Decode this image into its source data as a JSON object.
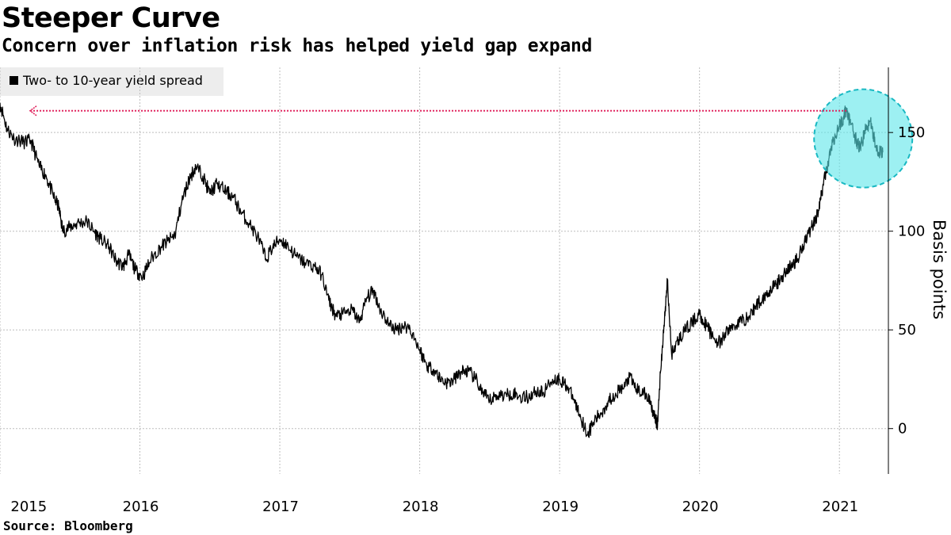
{
  "chart_data": {
    "type": "line",
    "title": "Steeper Curve",
    "subtitle": "Concern over inflation risk has helped yield gap expand",
    "ylabel": "Basis points",
    "xlabel": "",
    "source": "Source: Bloomberg",
    "legend": {
      "placement": "top-left",
      "entries": [
        "Two- to 10-year yield spread"
      ]
    },
    "grid": true,
    "xlim": [
      2015.0,
      2021.35
    ],
    "ylim": [
      -23,
      183
    ],
    "x_ticks": [
      {
        "label": "2015",
        "value": 2015.2
      },
      {
        "label": "2016",
        "value": 2016.0
      },
      {
        "label": "2017",
        "value": 2017.0
      },
      {
        "label": "2018",
        "value": 2018.0
      },
      {
        "label": "2019",
        "value": 2019.0
      },
      {
        "label": "2020",
        "value": 2020.0
      },
      {
        "label": "2021",
        "value": 2021.0
      }
    ],
    "x_gridlines": [
      2015.0,
      2016.0,
      2017.0,
      2018.0,
      2019.0,
      2020.0,
      2021.0
    ],
    "y_ticks": [
      0,
      50,
      100,
      150
    ],
    "series": [
      {
        "name": "Two- to 10-year yield spread",
        "color": "#000000",
        "points": [
          [
            2015.0,
            165
          ],
          [
            2015.05,
            152
          ],
          [
            2015.1,
            147
          ],
          [
            2015.17,
            145
          ],
          [
            2015.22,
            146
          ],
          [
            2015.28,
            133
          ],
          [
            2015.33,
            128
          ],
          [
            2015.38,
            118
          ],
          [
            2015.42,
            112
          ],
          [
            2015.45,
            100
          ],
          [
            2015.5,
            102
          ],
          [
            2015.55,
            104
          ],
          [
            2015.62,
            105
          ],
          [
            2015.67,
            100
          ],
          [
            2015.72,
            96
          ],
          [
            2015.78,
            92
          ],
          [
            2015.83,
            85
          ],
          [
            2015.88,
            82
          ],
          [
            2015.92,
            88
          ],
          [
            2015.97,
            80
          ],
          [
            2016.02,
            77
          ],
          [
            2016.08,
            86
          ],
          [
            2016.15,
            92
          ],
          [
            2016.2,
            95
          ],
          [
            2016.25,
            98
          ],
          [
            2016.3,
            115
          ],
          [
            2016.35,
            126
          ],
          [
            2016.4,
            133
          ],
          [
            2016.45,
            128
          ],
          [
            2016.5,
            119
          ],
          [
            2016.55,
            124
          ],
          [
            2016.62,
            120
          ],
          [
            2016.67,
            117
          ],
          [
            2016.72,
            110
          ],
          [
            2016.78,
            104
          ],
          [
            2016.85,
            96
          ],
          [
            2016.9,
            86
          ],
          [
            2016.95,
            92
          ],
          [
            2017.0,
            96
          ],
          [
            2017.05,
            93
          ],
          [
            2017.12,
            87
          ],
          [
            2017.18,
            84
          ],
          [
            2017.25,
            82
          ],
          [
            2017.3,
            78
          ],
          [
            2017.35,
            65
          ],
          [
            2017.4,
            57
          ],
          [
            2017.45,
            58
          ],
          [
            2017.52,
            60
          ],
          [
            2017.57,
            54
          ],
          [
            2017.62,
            66
          ],
          [
            2017.67,
            70
          ],
          [
            2017.72,
            60
          ],
          [
            2017.78,
            53
          ],
          [
            2017.83,
            50
          ],
          [
            2017.88,
            52
          ],
          [
            2017.93,
            51
          ],
          [
            2018.0,
            40
          ],
          [
            2018.05,
            32
          ],
          [
            2018.1,
            30
          ],
          [
            2018.15,
            25
          ],
          [
            2018.2,
            23
          ],
          [
            2018.25,
            25
          ],
          [
            2018.3,
            29
          ],
          [
            2018.35,
            29
          ],
          [
            2018.4,
            25
          ],
          [
            2018.45,
            18
          ],
          [
            2018.5,
            14
          ],
          [
            2018.55,
            17
          ],
          [
            2018.62,
            17
          ],
          [
            2018.67,
            18
          ],
          [
            2018.72,
            16
          ],
          [
            2018.78,
            16
          ],
          [
            2018.83,
            19
          ],
          [
            2018.88,
            18
          ],
          [
            2018.95,
            25
          ],
          [
            2019.0,
            25
          ],
          [
            2019.05,
            22
          ],
          [
            2019.1,
            15
          ],
          [
            2019.15,
            6
          ],
          [
            2019.2,
            -3
          ],
          [
            2019.25,
            4
          ],
          [
            2019.3,
            8
          ],
          [
            2019.35,
            14
          ],
          [
            2019.4,
            18
          ],
          [
            2019.45,
            20
          ],
          [
            2019.5,
            26
          ],
          [
            2019.55,
            20
          ],
          [
            2019.6,
            18
          ],
          [
            2019.65,
            14
          ],
          [
            2019.68,
            5
          ],
          [
            2019.7,
            2
          ],
          [
            2019.72,
            28
          ],
          [
            2019.75,
            55
          ],
          [
            2019.77,
            75
          ],
          [
            2019.8,
            38
          ],
          [
            2019.85,
            45
          ],
          [
            2019.9,
            50
          ],
          [
            2019.95,
            54
          ],
          [
            2020.0,
            58
          ],
          [
            2020.05,
            52
          ],
          [
            2020.1,
            46
          ],
          [
            2020.15,
            43
          ],
          [
            2020.2,
            50
          ],
          [
            2020.25,
            52
          ],
          [
            2020.3,
            55
          ],
          [
            2020.35,
            56
          ],
          [
            2020.4,
            62
          ],
          [
            2020.45,
            66
          ],
          [
            2020.5,
            70
          ],
          [
            2020.55,
            73
          ],
          [
            2020.6,
            78
          ],
          [
            2020.65,
            82
          ],
          [
            2020.7,
            86
          ],
          [
            2020.75,
            95
          ],
          [
            2020.8,
            102
          ],
          [
            2020.85,
            110
          ],
          [
            2020.88,
            122
          ],
          [
            2020.92,
            135
          ],
          [
            2020.95,
            145
          ],
          [
            2021.0,
            153
          ],
          [
            2021.03,
            158
          ],
          [
            2021.05,
            162
          ],
          [
            2021.08,
            154
          ],
          [
            2021.12,
            146
          ],
          [
            2021.15,
            142
          ],
          [
            2021.18,
            150
          ],
          [
            2021.22,
            156
          ],
          [
            2021.25,
            146
          ],
          [
            2021.28,
            140
          ],
          [
            2021.31,
            140
          ]
        ]
      }
    ],
    "annotations": [
      {
        "type": "dotted-arrow",
        "color": "#e0245e",
        "y": 161,
        "from_x": 2021.05,
        "to_x": 2015.0
      },
      {
        "type": "highlight-circle",
        "color": "#5ce6ea",
        "center_x": 2021.17,
        "center_y": 147
      }
    ]
  }
}
